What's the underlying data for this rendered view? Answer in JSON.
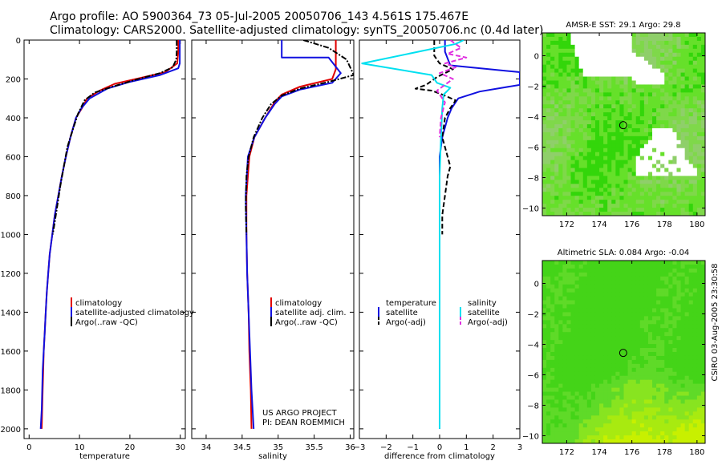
{
  "header": {
    "title_line1": "Argo profile: AO 5900364_73 05-Jul-2005 20050706_143 4.561S 175.467E",
    "title_line2": "Climatology: CARS2000. Satellite-adjusted climatology: synTS_20050706.nc (0.4d later)"
  },
  "side_label": "CSIRO 03-Aug-2005 23:30:58",
  "project_label": [
    "US ARGO PROJECT",
    "PI: DEAN ROEMMICH"
  ],
  "colors": {
    "climatology": "#e00000",
    "satellite": "#1010e0",
    "argo": "#000000",
    "salinity_satellite": "#00e0f0",
    "salinity_argo": "#e030e0"
  },
  "chart_data": [
    {
      "type": "line",
      "id": "temperature",
      "xlabel": "temperature",
      "ylabel": "",
      "xlim": [
        -1,
        31
      ],
      "ylim": [
        2050,
        0
      ],
      "xticks": [
        0,
        10,
        20,
        30
      ],
      "yticks": [
        0,
        200,
        400,
        600,
        800,
        1000,
        1200,
        1400,
        1600,
        1800,
        2000
      ],
      "legend": [
        "climatology",
        "satellite-adjusted climatology",
        "Argo(..raw -QC)"
      ],
      "series": [
        {
          "name": "climatology",
          "style": "solid",
          "points": [
            [
              29.6,
              0
            ],
            [
              29.6,
              60
            ],
            [
              29.4,
              120
            ],
            [
              27,
              165
            ],
            [
              22,
              195
            ],
            [
              17,
              225
            ],
            [
              14,
              260
            ],
            [
              11.5,
              300
            ],
            [
              10.5,
              350
            ],
            [
              9.3,
              400
            ],
            [
              8.2,
              500
            ],
            [
              7.3,
              600
            ],
            [
              6.5,
              700
            ],
            [
              5.8,
              800
            ],
            [
              5.1,
              900
            ],
            [
              4.6,
              1000
            ],
            [
              4.1,
              1100
            ],
            [
              3.8,
              1200
            ],
            [
              3.5,
              1300
            ],
            [
              3.3,
              1400
            ],
            [
              3.1,
              1500
            ],
            [
              2.9,
              1600
            ],
            [
              2.8,
              1700
            ],
            [
              2.7,
              1800
            ],
            [
              2.6,
              1900
            ],
            [
              2.5,
              2000
            ]
          ]
        },
        {
          "name": "satellite-adjusted climatology",
          "style": "solid",
          "points": [
            [
              29.9,
              0
            ],
            [
              29.9,
              60
            ],
            [
              29.9,
              120
            ],
            [
              29.6,
              145
            ],
            [
              26,
              180
            ],
            [
              20,
              215
            ],
            [
              15.5,
              250
            ],
            [
              12,
              300
            ],
            [
              10.4,
              350
            ],
            [
              9.3,
              400
            ],
            [
              8.2,
              500
            ],
            [
              7.3,
              600
            ],
            [
              6.5,
              700
            ],
            [
              5.8,
              800
            ],
            [
              5.1,
              900
            ],
            [
              4.6,
              1000
            ],
            [
              4.1,
              1100
            ],
            [
              3.8,
              1200
            ],
            [
              3.5,
              1300
            ],
            [
              3.3,
              1400
            ],
            [
              3.1,
              1500
            ],
            [
              2.9,
              1600
            ],
            [
              2.7,
              1700
            ],
            [
              2.6,
              1800
            ],
            [
              2.5,
              1900
            ],
            [
              2.3,
              2000
            ]
          ]
        },
        {
          "name": "Argo(..raw -QC)",
          "style": "dashdot",
          "points": [
            [
              29.3,
              0
            ],
            [
              29.3,
              60
            ],
            [
              29.2,
              100
            ],
            [
              28.5,
              140
            ],
            [
              26,
              170
            ],
            [
              21,
              205
            ],
            [
              16.5,
              240
            ],
            [
              13,
              270
            ],
            [
              11,
              310
            ],
            [
              9.7,
              380
            ],
            [
              8.8,
              450
            ],
            [
              7.6,
              550
            ],
            [
              6.9,
              650
            ],
            [
              6.2,
              750
            ],
            [
              5.6,
              850
            ],
            [
              5.0,
              950
            ],
            [
              4.7,
              1000
            ]
          ]
        }
      ]
    },
    {
      "type": "line",
      "id": "salinity",
      "xlabel": "salinity",
      "ylabel": "",
      "xlim": [
        33.8,
        36.05
      ],
      "ylim": [
        2050,
        0
      ],
      "xticks": [
        34,
        34.5,
        35,
        35.5,
        36
      ],
      "yticks": [
        0,
        200,
        400,
        600,
        800,
        1000,
        1200,
        1400,
        1600,
        1800,
        2000
      ],
      "legend": [
        "climatology",
        "satellite adj. clim.",
        "Argo(..raw -QC)"
      ],
      "series": [
        {
          "name": "climatology",
          "style": "solid",
          "points": [
            [
              35.8,
              0
            ],
            [
              35.8,
              150
            ],
            [
              35.75,
              200
            ],
            [
              35.3,
              240
            ],
            [
              35.05,
              280
            ],
            [
              34.95,
              320
            ],
            [
              34.82,
              400
            ],
            [
              34.67,
              500
            ],
            [
              34.6,
              600
            ],
            [
              34.56,
              800
            ],
            [
              34.56,
              1000
            ],
            [
              34.57,
              1200
            ],
            [
              34.59,
              1400
            ],
            [
              34.6,
              1600
            ],
            [
              34.62,
              1800
            ],
            [
              34.63,
              2000
            ]
          ]
        },
        {
          "name": "satellite adj. clim.",
          "style": "solid",
          "points": [
            [
              35.05,
              0
            ],
            [
              35.05,
              90
            ],
            [
              35.7,
              90
            ],
            [
              35.87,
              170
            ],
            [
              35.75,
              220
            ],
            [
              35.3,
              255
            ],
            [
              35.05,
              290
            ],
            [
              34.95,
              330
            ],
            [
              34.82,
              400
            ],
            [
              34.67,
              500
            ],
            [
              34.58,
              600
            ],
            [
              34.55,
              800
            ],
            [
              34.56,
              1000
            ],
            [
              34.57,
              1200
            ],
            [
              34.59,
              1400
            ],
            [
              34.61,
              1600
            ],
            [
              34.63,
              1800
            ],
            [
              34.66,
              2000
            ]
          ]
        },
        {
          "name": "Argo(..raw -QC)",
          "style": "dashdot",
          "points": [
            [
              35.35,
              0
            ],
            [
              35.7,
              40
            ],
            [
              35.95,
              100
            ],
            [
              36.05,
              180
            ],
            [
              35.7,
              215
            ],
            [
              35.3,
              250
            ],
            [
              35.05,
              285
            ],
            [
              34.9,
              330
            ],
            [
              34.78,
              400
            ],
            [
              34.66,
              500
            ],
            [
              34.59,
              600
            ],
            [
              34.56,
              700
            ],
            [
              34.55,
              850
            ],
            [
              34.56,
              1000
            ]
          ]
        }
      ]
    },
    {
      "type": "line",
      "id": "difference",
      "xlabel": "difference from climatology",
      "ylabel": "",
      "xlim": [
        -3,
        3
      ],
      "ylim": [
        2050,
        0
      ],
      "xticks": [
        -3,
        -2,
        -1,
        0,
        1,
        2,
        3
      ],
      "yticks": [
        0,
        200,
        400,
        600,
        800,
        1000,
        1200,
        1400,
        1600,
        1800,
        2000
      ],
      "legend_temperature": {
        "title": "temperature",
        "entries": [
          "satellite",
          "Argo(-adj)"
        ]
      },
      "legend_salinity": {
        "title": "salinity",
        "entries": [
          "satellite",
          "Argo(-adj)"
        ]
      },
      "series": [
        {
          "name": "temperature satellite",
          "style": "solid",
          "points": [
            [
              0.2,
              0
            ],
            [
              0.2,
              60
            ],
            [
              0.4,
              130
            ],
            [
              3,
              165
            ],
            [
              3,
              230
            ],
            [
              1.5,
              265
            ],
            [
              0.7,
              300
            ],
            [
              0.45,
              350
            ],
            [
              0.3,
              400
            ],
            [
              0.1,
              500
            ],
            [
              0,
              600
            ],
            [
              0,
              2000
            ]
          ]
        },
        {
          "name": "temperature Argo(-adj)",
          "style": "dashed",
          "points": [
            [
              -0.2,
              0
            ],
            [
              -0.2,
              80
            ],
            [
              0,
              120
            ],
            [
              0.5,
              150
            ],
            [
              -0.1,
              190
            ],
            [
              -0.5,
              230
            ],
            [
              -0.9,
              250
            ],
            [
              -0.3,
              260
            ],
            [
              0.1,
              280
            ],
            [
              0.6,
              310
            ],
            [
              0.4,
              350
            ],
            [
              0.2,
              400
            ],
            [
              0.1,
              500
            ],
            [
              0.3,
              600
            ],
            [
              0.4,
              650
            ],
            [
              0.3,
              700
            ],
            [
              0.2,
              800
            ],
            [
              0.1,
              900
            ],
            [
              0.1,
              1000
            ]
          ]
        },
        {
          "name": "salinity satellite",
          "style": "solid",
          "points": [
            [
              0.9,
              0
            ],
            [
              0.6,
              20
            ],
            [
              -2.9,
              120
            ],
            [
              -0.3,
              180
            ],
            [
              -0.1,
              220
            ],
            [
              0.4,
              245
            ],
            [
              0.3,
              260
            ],
            [
              0.15,
              280
            ],
            [
              0.1,
              350
            ],
            [
              0.05,
              500
            ],
            [
              0,
              700
            ],
            [
              0,
              1000
            ],
            [
              0,
              1400
            ],
            [
              0,
              2000
            ]
          ]
        },
        {
          "name": "salinity Argo(-adj)",
          "style": "dashed",
          "points": [
            [
              0.4,
              0
            ],
            [
              0.8,
              40
            ],
            [
              0.3,
              70
            ],
            [
              1.0,
              90
            ],
            [
              0.2,
              120
            ],
            [
              0.6,
              140
            ],
            [
              0,
              170
            ],
            [
              0.5,
              200
            ],
            [
              -0.1,
              260
            ],
            [
              0.2,
              320
            ],
            [
              0.05,
              400
            ],
            [
              0,
              500
            ]
          ]
        }
      ]
    },
    {
      "type": "heatmap",
      "id": "sst_map",
      "title": "AMSR-E SST: 29.1 Argo: 29.8",
      "xlim": [
        170.5,
        180.5
      ],
      "ylim": [
        -10.5,
        1.5
      ],
      "xticks": [
        172,
        174,
        176,
        178,
        180
      ],
      "yticks": [
        0,
        -2,
        -4,
        -6,
        -8,
        -10
      ],
      "float_position": [
        175.467,
        -4.561
      ]
    },
    {
      "type": "heatmap",
      "id": "sla_map",
      "title": "Altimetric SLA: 0.084 Argo: -0.04",
      "xlim": [
        170.5,
        180.5
      ],
      "ylim": [
        -10.5,
        1.5
      ],
      "xticks": [
        172,
        174,
        176,
        178,
        180
      ],
      "yticks": [
        0,
        -2,
        -4,
        -6,
        -8,
        -10
      ],
      "float_position": [
        175.467,
        -4.561
      ]
    }
  ]
}
